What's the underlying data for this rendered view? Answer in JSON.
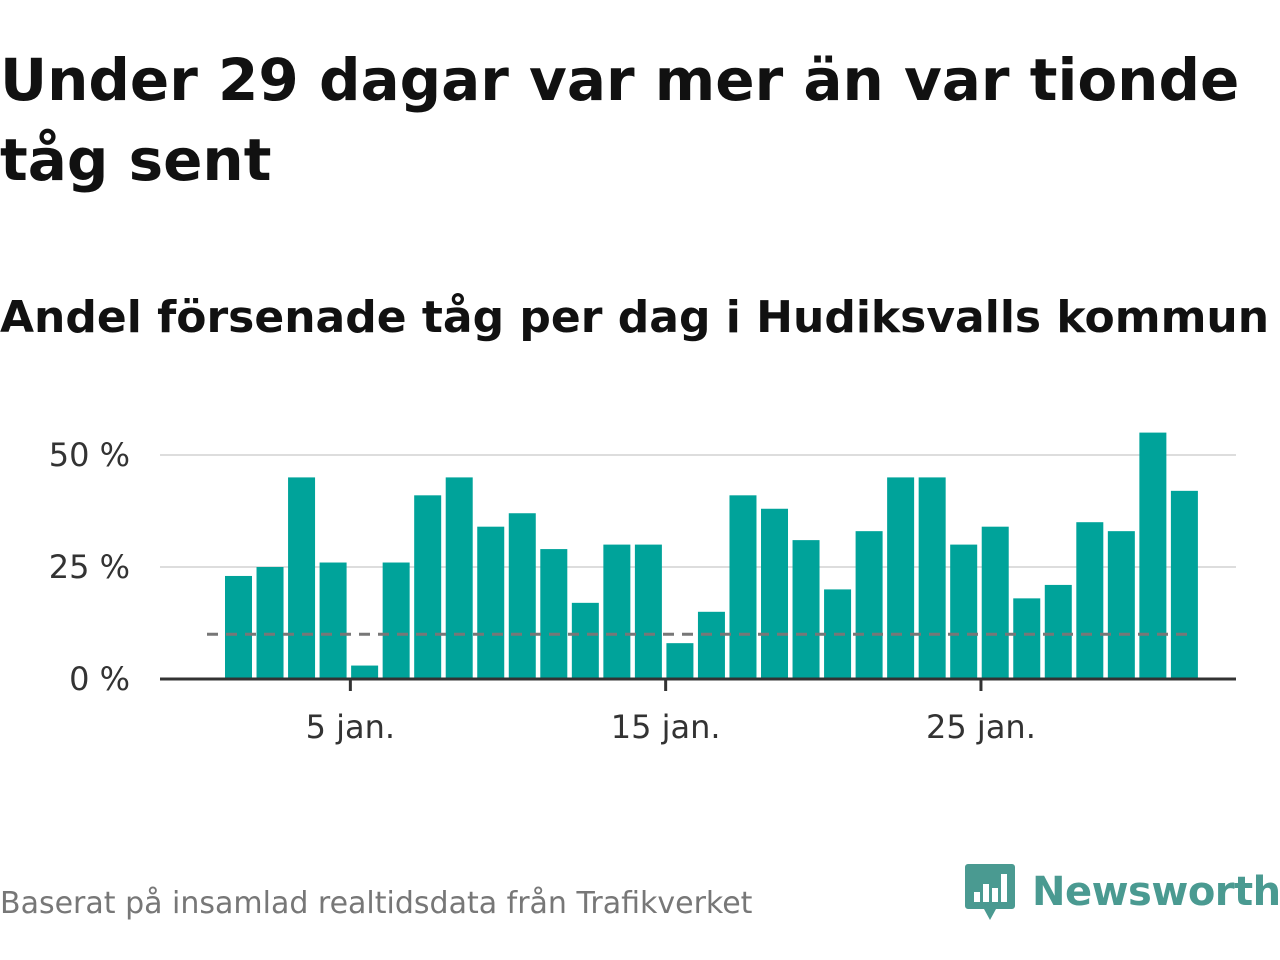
{
  "title": "Under 29 dagar var mer än var tionde tåg sent",
  "subtitle": "Andel försenade tåg per dag i Hudiksvalls kommun",
  "source": "Baserat på insamlad realtidsdata från Trafikverket",
  "brand": {
    "name": "Newsworthy",
    "icon": "newsworthy-logo-icon",
    "color": "#4a9a91"
  },
  "colors": {
    "bar": "#00a39a",
    "reference": "#777777",
    "grid": "#dddddd",
    "axis": "#333333"
  },
  "chart_data": {
    "type": "bar",
    "x": [
      1,
      2,
      3,
      4,
      5,
      6,
      7,
      8,
      9,
      10,
      11,
      12,
      13,
      14,
      15,
      16,
      17,
      18,
      19,
      20,
      21,
      22,
      23,
      24,
      25,
      26,
      27,
      28,
      29,
      30,
      31
    ],
    "values": [
      23,
      25,
      45,
      26,
      3,
      26,
      41,
      45,
      34,
      37,
      29,
      17,
      30,
      30,
      8,
      15,
      41,
      38,
      31,
      20,
      33,
      45,
      45,
      30,
      34,
      18,
      21,
      35,
      33,
      55,
      42
    ],
    "reference_line": 10,
    "x_ticks": [
      {
        "value": 5,
        "label": "5 jan."
      },
      {
        "value": 15,
        "label": "15 jan."
      },
      {
        "value": 25,
        "label": "25 jan."
      }
    ],
    "y_ticks": [
      {
        "value": 0,
        "label": "0 %"
      },
      {
        "value": 25,
        "label": "25 %"
      },
      {
        "value": 50,
        "label": "50 %"
      }
    ],
    "ylim": [
      0,
      50
    ],
    "grid": true,
    "legend": "none"
  }
}
